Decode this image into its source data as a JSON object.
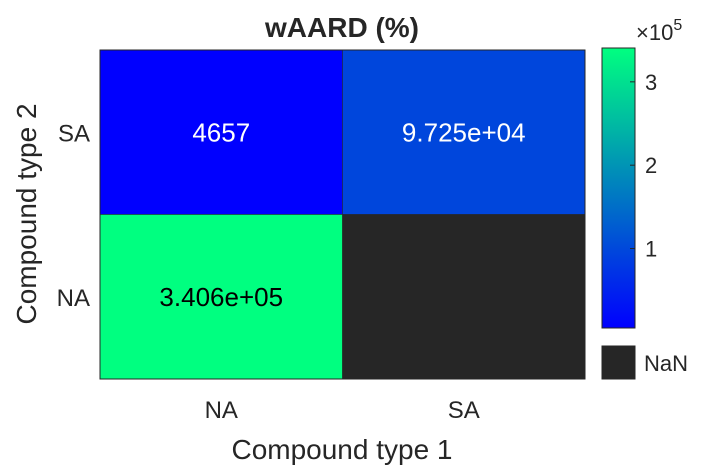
{
  "chart_data": {
    "type": "heatmap",
    "title": "wAARD (%)",
    "xlabel": "Compound type 1",
    "ylabel": "Compound type 2",
    "x_categories": [
      "NA",
      "SA"
    ],
    "y_categories": [
      "SA",
      "NA"
    ],
    "cells": [
      {
        "x": "NA",
        "y": "SA",
        "value": 4657,
        "label": "4657"
      },
      {
        "x": "SA",
        "y": "SA",
        "value": 97250,
        "label": "9.725e+04"
      },
      {
        "x": "NA",
        "y": "NA",
        "value": 340600,
        "label": "3.406e+05"
      },
      {
        "x": "SA",
        "y": "NA",
        "value": null,
        "label": ""
      }
    ],
    "colorbar": {
      "exponent_label": "×10",
      "exponent_power": "5",
      "ticks": [
        {
          "value": 100000,
          "label": "1"
        },
        {
          "value": 200000,
          "label": "2"
        },
        {
          "value": 300000,
          "label": "3"
        }
      ],
      "range": [
        4657,
        340600
      ],
      "colormap_low": "#0000ff",
      "colormap_high": "#00ff80",
      "nan_color": "#262626",
      "nan_label": "NaN"
    }
  }
}
